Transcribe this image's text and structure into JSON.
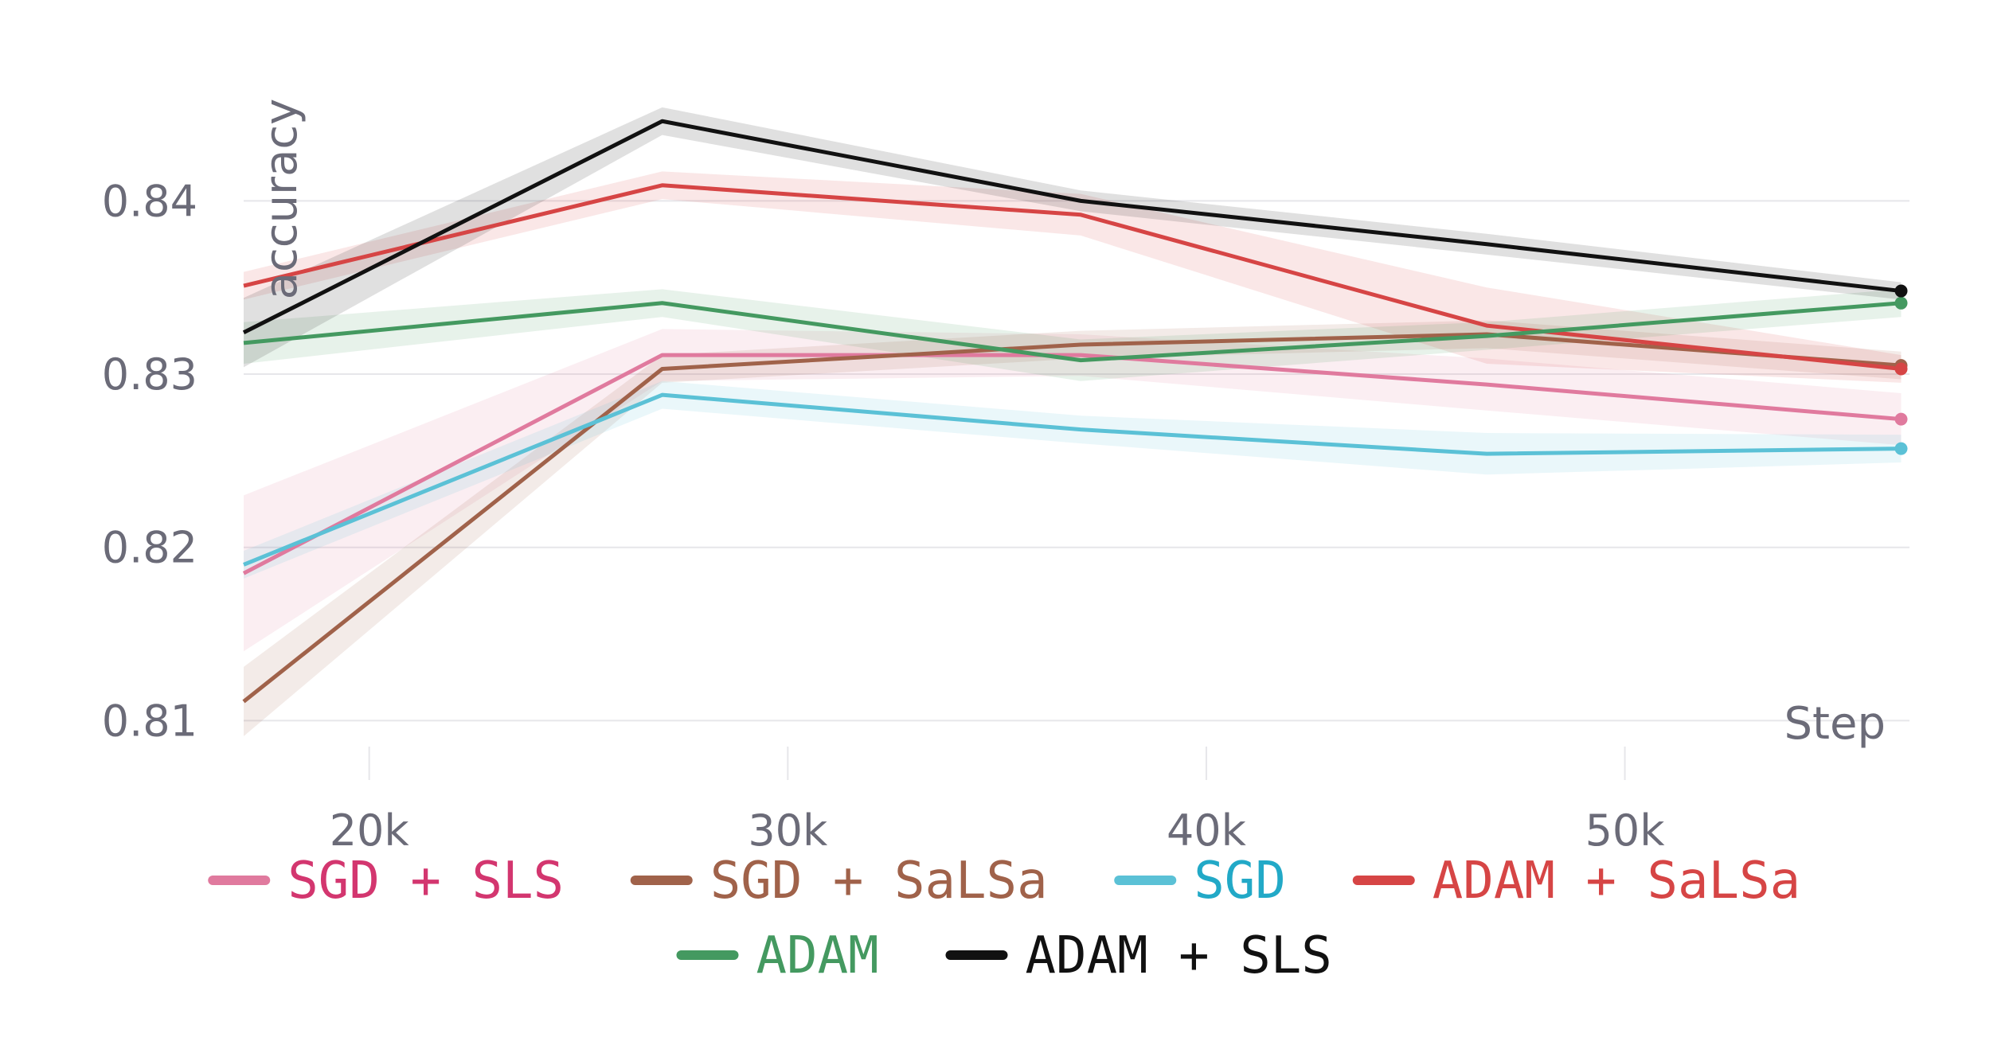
{
  "chart_data": {
    "type": "line",
    "xlabel": "Step",
    "ylabel": "accuracy",
    "xlim": [
      17000,
      56800
    ],
    "ylim": [
      0.8085,
      0.847
    ],
    "x_ticks": [
      20000,
      30000,
      40000,
      50000
    ],
    "x_tick_labels": [
      "20k",
      "30k",
      "40k",
      "50k"
    ],
    "y_ticks": [
      0.81,
      0.82,
      0.83,
      0.84
    ],
    "y_tick_labels": [
      "0.81",
      "0.82",
      "0.83",
      "0.84"
    ],
    "grid": true,
    "legend_position": "bottom",
    "series": [
      {
        "name": "SGD + SLS",
        "color": "#e07a9e",
        "text_color": "#d3366f",
        "x": [
          17000,
          27000,
          37000,
          46700,
          56600
        ],
        "y": [
          0.8185,
          0.8311,
          0.8311,
          0.8294,
          0.8274
        ],
        "band": [
          0.0045,
          0.0015,
          0.0012,
          0.0015,
          0.0015
        ],
        "end_marker": true
      },
      {
        "name": "SGD + SaLSa",
        "color": "#a0624a",
        "text_color": "#a0624a",
        "x": [
          17000,
          27000,
          37000,
          46700,
          56600
        ],
        "y": [
          0.8111,
          0.8303,
          0.8317,
          0.8323,
          0.8305
        ],
        "band": [
          0.002,
          0.0008,
          0.0008,
          0.0008,
          0.0008
        ],
        "end_marker": true
      },
      {
        "name": "SGD",
        "color": "#5bc1d6",
        "text_color": "#22a9c7",
        "x": [
          17000,
          27000,
          37000,
          46700,
          56600
        ],
        "y": [
          0.819,
          0.8288,
          0.8268,
          0.8254,
          0.8257
        ],
        "band": [
          0.0008,
          0.0008,
          0.0008,
          0.0012,
          0.0008
        ],
        "end_marker": true
      },
      {
        "name": "ADAM + SaLSa",
        "color": "#d64545",
        "text_color": "#d64545",
        "x": [
          17000,
          27000,
          37000,
          46700,
          56600
        ],
        "y": [
          0.8351,
          0.8409,
          0.8392,
          0.8328,
          0.8303
        ],
        "band": [
          0.0008,
          0.0008,
          0.0012,
          0.0022,
          0.0008
        ],
        "end_marker": true
      },
      {
        "name": "ADAM",
        "color": "#449960",
        "text_color": "#449960",
        "x": [
          17000,
          27000,
          37000,
          46700,
          56600
        ],
        "y": [
          0.8318,
          0.8341,
          0.8308,
          0.8322,
          0.8341
        ],
        "band": [
          0.0012,
          0.0008,
          0.0012,
          0.0008,
          0.0008
        ],
        "end_marker": true
      },
      {
        "name": "ADAM + SLS",
        "color": "#111111",
        "text_color": "#111111",
        "x": [
          17000,
          27000,
          37000,
          46700,
          56600
        ],
        "y": [
          0.8324,
          0.8446,
          0.84,
          0.8375,
          0.8348
        ],
        "band": [
          0.002,
          0.0008,
          0.0006,
          0.0006,
          0.0005
        ],
        "end_marker": true
      }
    ]
  }
}
